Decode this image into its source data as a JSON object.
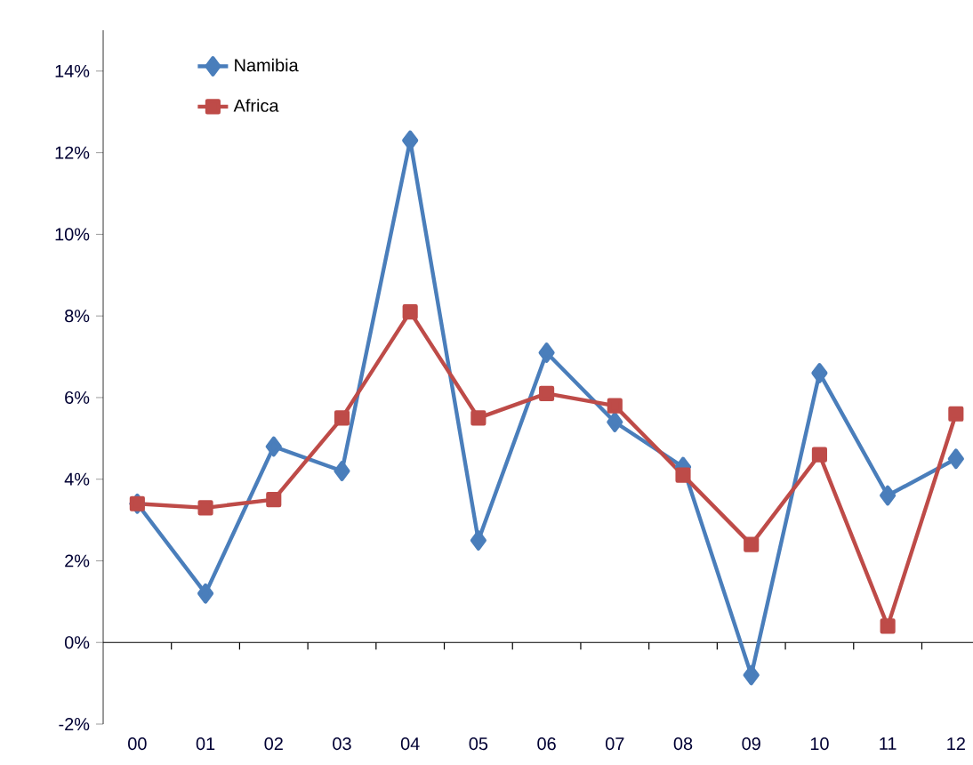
{
  "chart_data": {
    "type": "line",
    "categories": [
      "00",
      "01",
      "02",
      "03",
      "04",
      "05",
      "06",
      "07",
      "08",
      "09",
      "10",
      "11",
      "12"
    ],
    "series": [
      {
        "name": "Namibia",
        "color": "#4a7ebb",
        "marker": "diamond",
        "values": [
          3.4,
          1.2,
          4.8,
          4.2,
          12.3,
          2.5,
          7.1,
          5.4,
          4.3,
          -0.8,
          6.6,
          3.6,
          4.5
        ]
      },
      {
        "name": "Africa",
        "color": "#be4b48",
        "marker": "square",
        "values": [
          3.4,
          3.3,
          3.5,
          5.5,
          8.1,
          5.5,
          6.1,
          5.8,
          4.1,
          2.4,
          4.6,
          0.4,
          5.6
        ]
      }
    ],
    "ylim": [
      -2,
      15
    ],
    "yticks": [
      {
        "value": -2,
        "label": "-2%"
      },
      {
        "value": 0,
        "label": "0%"
      },
      {
        "value": 2,
        "label": "2%"
      },
      {
        "value": 4,
        "label": "4%"
      },
      {
        "value": 6,
        "label": "6%"
      },
      {
        "value": 8,
        "label": "8%"
      },
      {
        "value": 10,
        "label": "10%"
      },
      {
        "value": 12,
        "label": "12%"
      },
      {
        "value": 14,
        "label": "14%"
      }
    ],
    "ref_lines": [
      {
        "axis": "y",
        "value": 0,
        "color": "#000000"
      }
    ],
    "grid": false,
    "legend": "top left",
    "line_style": "solid"
  }
}
